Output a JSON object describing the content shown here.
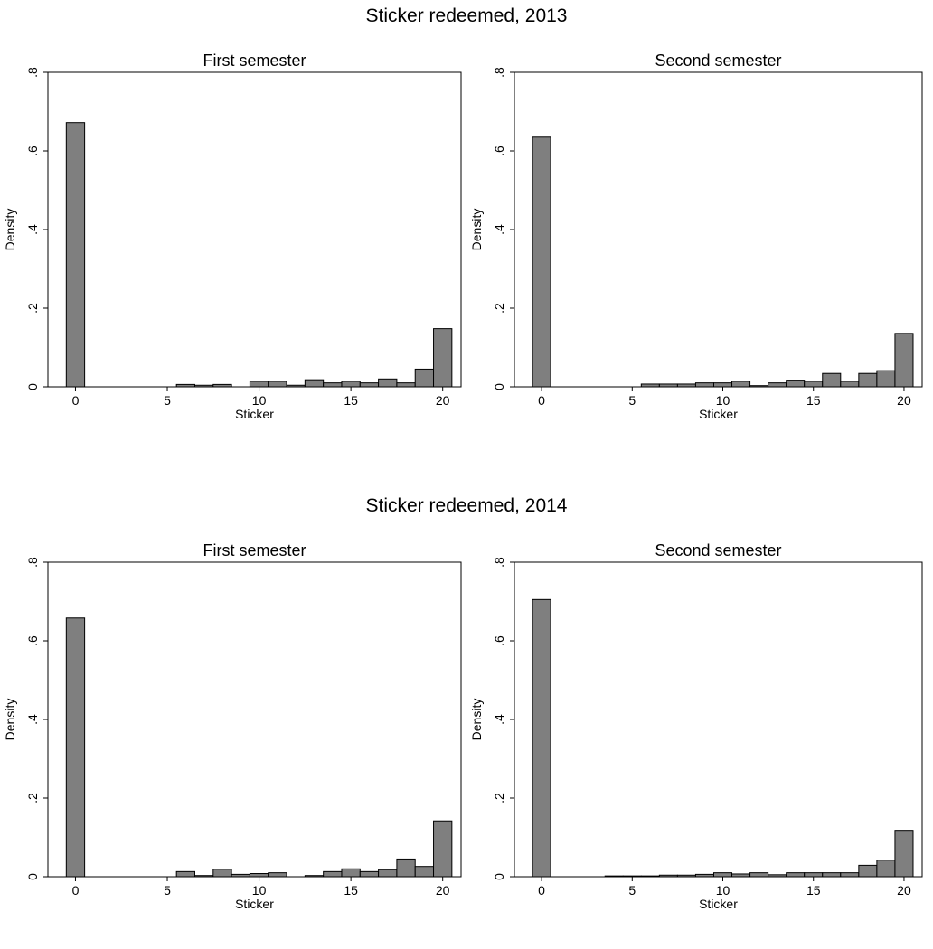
{
  "groups": [
    {
      "title": "Sticker redeemed, 2013"
    },
    {
      "title": "Sticker redeemed, 2014"
    }
  ],
  "chart_data": [
    {
      "type": "bar",
      "group": 0,
      "title": "First semester",
      "xlabel": "Sticker",
      "ylabel": "Density",
      "xlim": [
        -1.5,
        21
      ],
      "ylim": [
        0,
        0.8
      ],
      "xticks": [
        0,
        5,
        10,
        15,
        20
      ],
      "xtick_labels": [
        "0",
        "5",
        "10",
        "15",
        "20"
      ],
      "yticks": [
        0,
        0.2,
        0.4,
        0.6,
        0.8
      ],
      "ytick_labels": [
        "0",
        ".2",
        ".4",
        ".6",
        ".8"
      ],
      "bins": [
        0,
        6,
        7,
        8,
        10,
        11,
        12,
        13,
        14,
        15,
        16,
        17,
        18,
        19,
        20
      ],
      "values": [
        0.672,
        0.006,
        0.004,
        0.006,
        0.014,
        0.014,
        0.004,
        0.018,
        0.01,
        0.014,
        0.01,
        0.02,
        0.01,
        0.045,
        0.148
      ],
      "bar_color": "#7f7f7f",
      "grid": false
    },
    {
      "type": "bar",
      "group": 0,
      "title": "Second semester",
      "xlabel": "Sticker",
      "ylabel": "Density",
      "xlim": [
        -1.5,
        21
      ],
      "ylim": [
        0,
        0.8
      ],
      "xticks": [
        0,
        5,
        10,
        15,
        20
      ],
      "xtick_labels": [
        "0",
        "5",
        "10",
        "15",
        "20"
      ],
      "yticks": [
        0,
        0.2,
        0.4,
        0.6,
        0.8
      ],
      "ytick_labels": [
        "0",
        ".2",
        ".4",
        ".6",
        ".8"
      ],
      "bins": [
        0,
        6,
        7,
        8,
        9,
        10,
        11,
        12,
        13,
        14,
        15,
        16,
        17,
        18,
        19,
        20
      ],
      "values": [
        0.635,
        0.007,
        0.007,
        0.007,
        0.01,
        0.01,
        0.014,
        0.003,
        0.01,
        0.017,
        0.014,
        0.034,
        0.014,
        0.034,
        0.041,
        0.136
      ],
      "bar_color": "#7f7f7f",
      "grid": false
    },
    {
      "type": "bar",
      "group": 1,
      "title": "First semester",
      "xlabel": "Sticker",
      "ylabel": "Density",
      "xlim": [
        -1.5,
        21
      ],
      "ylim": [
        0,
        0.8
      ],
      "xticks": [
        0,
        5,
        10,
        15,
        20
      ],
      "xtick_labels": [
        "0",
        "5",
        "10",
        "15",
        "20"
      ],
      "yticks": [
        0,
        0.2,
        0.4,
        0.6,
        0.8
      ],
      "ytick_labels": [
        "0",
        ".2",
        ".4",
        ".6",
        ".8"
      ],
      "bins": [
        0,
        6,
        7,
        8,
        9,
        10,
        11,
        13,
        14,
        15,
        16,
        17,
        18,
        19,
        20
      ],
      "values": [
        0.658,
        0.013,
        0.003,
        0.019,
        0.006,
        0.008,
        0.01,
        0.003,
        0.013,
        0.02,
        0.013,
        0.018,
        0.045,
        0.026,
        0.142
      ],
      "bar_color": "#7f7f7f",
      "grid": false
    },
    {
      "type": "bar",
      "group": 1,
      "title": "Second semester",
      "xlabel": "Sticker",
      "ylabel": "Density",
      "xlim": [
        -1.5,
        21
      ],
      "ylim": [
        0,
        0.8
      ],
      "xticks": [
        0,
        5,
        10,
        15,
        20
      ],
      "xtick_labels": [
        "0",
        "5",
        "10",
        "15",
        "20"
      ],
      "yticks": [
        0,
        0.2,
        0.4,
        0.6,
        0.8
      ],
      "ytick_labels": [
        "0",
        ".2",
        ".4",
        ".6",
        ".8"
      ],
      "bins": [
        0,
        4,
        5,
        6,
        7,
        8,
        9,
        10,
        11,
        12,
        13,
        14,
        15,
        16,
        17,
        18,
        19,
        20
      ],
      "values": [
        0.705,
        0.002,
        0.002,
        0.002,
        0.004,
        0.004,
        0.006,
        0.01,
        0.007,
        0.01,
        0.005,
        0.01,
        0.01,
        0.01,
        0.01,
        0.029,
        0.042,
        0.118
      ],
      "bar_color": "#7f7f7f",
      "grid": false
    }
  ]
}
